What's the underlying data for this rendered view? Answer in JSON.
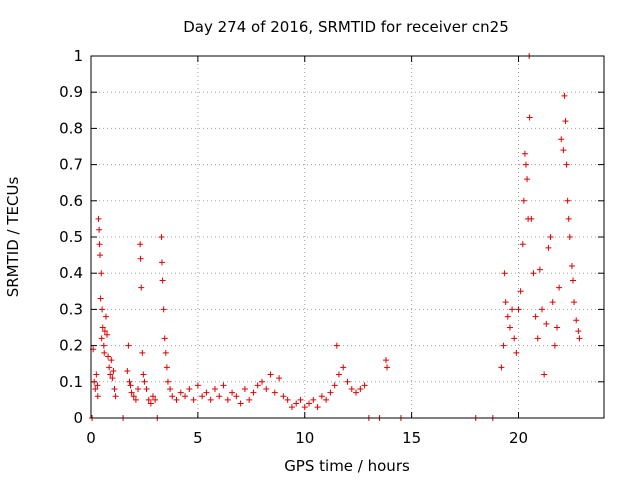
{
  "chart_data": {
    "type": "scatter",
    "title": "Day 274 of 2016, SRMTID for receiver cn25",
    "xlabel": "GPS time / hours",
    "ylabel": "SRMTID / TECUs",
    "xlim": [
      0,
      24
    ],
    "ylim": [
      0,
      1
    ],
    "grid": true,
    "marker": "+",
    "color": "#e00000",
    "x_ticks": [
      0,
      5,
      10,
      15,
      20
    ],
    "x_tick_labels": [
      "0",
      "5",
      "10",
      "15",
      "20"
    ],
    "y_ticks": [
      0,
      0.1,
      0.2,
      0.3,
      0.4,
      0.5,
      0.6,
      0.7,
      0.8,
      0.9,
      1
    ],
    "y_tick_labels": [
      "0",
      "0.1",
      "0.2",
      "0.3",
      "0.4",
      "0.5",
      "0.6",
      "0.7",
      "0.8",
      "0.9",
      "1"
    ],
    "series": [
      {
        "name": "SRMTID",
        "points": [
          [
            0.05,
            0.0
          ],
          [
            0.1,
            0.19
          ],
          [
            0.15,
            0.1
          ],
          [
            0.2,
            0.08
          ],
          [
            0.25,
            0.12
          ],
          [
            0.3,
            0.09
          ],
          [
            0.32,
            0.06
          ],
          [
            0.35,
            0.55
          ],
          [
            0.38,
            0.52
          ],
          [
            0.4,
            0.48
          ],
          [
            0.42,
            0.45
          ],
          [
            0.45,
            0.33
          ],
          [
            0.48,
            0.4
          ],
          [
            0.5,
            0.22
          ],
          [
            0.52,
            0.3
          ],
          [
            0.55,
            0.25
          ],
          [
            0.6,
            0.2
          ],
          [
            0.62,
            0.18
          ],
          [
            0.65,
            0.24
          ],
          [
            0.7,
            0.28
          ],
          [
            0.75,
            0.23
          ],
          [
            0.8,
            0.17
          ],
          [
            0.85,
            0.14
          ],
          [
            0.9,
            0.12
          ],
          [
            0.95,
            0.16
          ],
          [
            1.0,
            0.11
          ],
          [
            1.05,
            0.13
          ],
          [
            1.1,
            0.08
          ],
          [
            1.15,
            0.06
          ],
          [
            1.5,
            0.0
          ],
          [
            1.7,
            0.13
          ],
          [
            1.75,
            0.2
          ],
          [
            1.8,
            0.1
          ],
          [
            1.85,
            0.09
          ],
          [
            1.9,
            0.07
          ],
          [
            2.0,
            0.06
          ],
          [
            2.1,
            0.05
          ],
          [
            2.2,
            0.08
          ],
          [
            2.3,
            0.48
          ],
          [
            2.32,
            0.44
          ],
          [
            2.35,
            0.36
          ],
          [
            2.4,
            0.18
          ],
          [
            2.45,
            0.12
          ],
          [
            2.5,
            0.1
          ],
          [
            2.6,
            0.08
          ],
          [
            2.7,
            0.05
          ],
          [
            2.8,
            0.04
          ],
          [
            2.9,
            0.06
          ],
          [
            3.0,
            0.05
          ],
          [
            3.1,
            0.0
          ],
          [
            3.3,
            0.5
          ],
          [
            3.32,
            0.43
          ],
          [
            3.35,
            0.38
          ],
          [
            3.4,
            0.3
          ],
          [
            3.45,
            0.22
          ],
          [
            3.5,
            0.18
          ],
          [
            3.55,
            0.14
          ],
          [
            3.6,
            0.1
          ],
          [
            3.7,
            0.08
          ],
          [
            3.8,
            0.06
          ],
          [
            4.0,
            0.05
          ],
          [
            4.2,
            0.07
          ],
          [
            4.4,
            0.06
          ],
          [
            4.6,
            0.08
          ],
          [
            4.8,
            0.05
          ],
          [
            5.0,
            0.09
          ],
          [
            5.2,
            0.06
          ],
          [
            5.4,
            0.07
          ],
          [
            5.6,
            0.05
          ],
          [
            5.8,
            0.08
          ],
          [
            6.0,
            0.06
          ],
          [
            6.2,
            0.09
          ],
          [
            6.4,
            0.05
          ],
          [
            6.6,
            0.07
          ],
          [
            6.8,
            0.06
          ],
          [
            7.0,
            0.04
          ],
          [
            7.2,
            0.08
          ],
          [
            7.4,
            0.05
          ],
          [
            7.6,
            0.07
          ],
          [
            7.8,
            0.09
          ],
          [
            8.0,
            0.1
          ],
          [
            8.2,
            0.08
          ],
          [
            8.4,
            0.12
          ],
          [
            8.6,
            0.07
          ],
          [
            8.8,
            0.11
          ],
          [
            9.0,
            0.06
          ],
          [
            9.2,
            0.05
          ],
          [
            9.4,
            0.03
          ],
          [
            9.6,
            0.04
          ],
          [
            9.8,
            0.05
          ],
          [
            10.0,
            0.03
          ],
          [
            10.2,
            0.04
          ],
          [
            10.4,
            0.05
          ],
          [
            10.6,
            0.03
          ],
          [
            10.8,
            0.06
          ],
          [
            11.0,
            0.05
          ],
          [
            11.2,
            0.07
          ],
          [
            11.4,
            0.09
          ],
          [
            11.5,
            0.2
          ],
          [
            11.6,
            0.12
          ],
          [
            11.8,
            0.14
          ],
          [
            12.0,
            0.1
          ],
          [
            12.2,
            0.08
          ],
          [
            12.4,
            0.07
          ],
          [
            12.6,
            0.08
          ],
          [
            12.8,
            0.09
          ],
          [
            13.0,
            0.0
          ],
          [
            13.5,
            0.0
          ],
          [
            13.8,
            0.16
          ],
          [
            13.85,
            0.14
          ],
          [
            14.5,
            0.0
          ],
          [
            18.0,
            0.0
          ],
          [
            18.8,
            0.0
          ],
          [
            19.2,
            0.14
          ],
          [
            19.3,
            0.2
          ],
          [
            19.35,
            0.4
          ],
          [
            19.4,
            0.32
          ],
          [
            19.5,
            0.28
          ],
          [
            19.6,
            0.25
          ],
          [
            19.7,
            0.3
          ],
          [
            19.8,
            0.22
          ],
          [
            19.9,
            0.18
          ],
          [
            20.0,
            0.3
          ],
          [
            20.1,
            0.35
          ],
          [
            20.2,
            0.48
          ],
          [
            20.25,
            0.6
          ],
          [
            20.3,
            0.73
          ],
          [
            20.35,
            0.7
          ],
          [
            20.4,
            0.66
          ],
          [
            20.45,
            0.55
          ],
          [
            20.5,
            1.0
          ],
          [
            20.52,
            0.83
          ],
          [
            20.6,
            0.55
          ],
          [
            20.7,
            0.4
          ],
          [
            20.8,
            0.28
          ],
          [
            20.9,
            0.22
          ],
          [
            21.0,
            0.41
          ],
          [
            21.1,
            0.3
          ],
          [
            21.2,
            0.12
          ],
          [
            21.3,
            0.26
          ],
          [
            21.4,
            0.47
          ],
          [
            21.5,
            0.5
          ],
          [
            21.6,
            0.32
          ],
          [
            21.7,
            0.2
          ],
          [
            21.8,
            0.25
          ],
          [
            21.9,
            0.36
          ],
          [
            22.0,
            0.77
          ],
          [
            22.1,
            0.74
          ],
          [
            22.15,
            0.89
          ],
          [
            22.2,
            0.82
          ],
          [
            22.25,
            0.7
          ],
          [
            22.3,
            0.6
          ],
          [
            22.35,
            0.55
          ],
          [
            22.4,
            0.5
          ],
          [
            22.5,
            0.42
          ],
          [
            22.55,
            0.38
          ],
          [
            22.6,
            0.32
          ],
          [
            22.7,
            0.27
          ],
          [
            22.8,
            0.24
          ],
          [
            22.85,
            0.22
          ]
        ]
      }
    ]
  }
}
